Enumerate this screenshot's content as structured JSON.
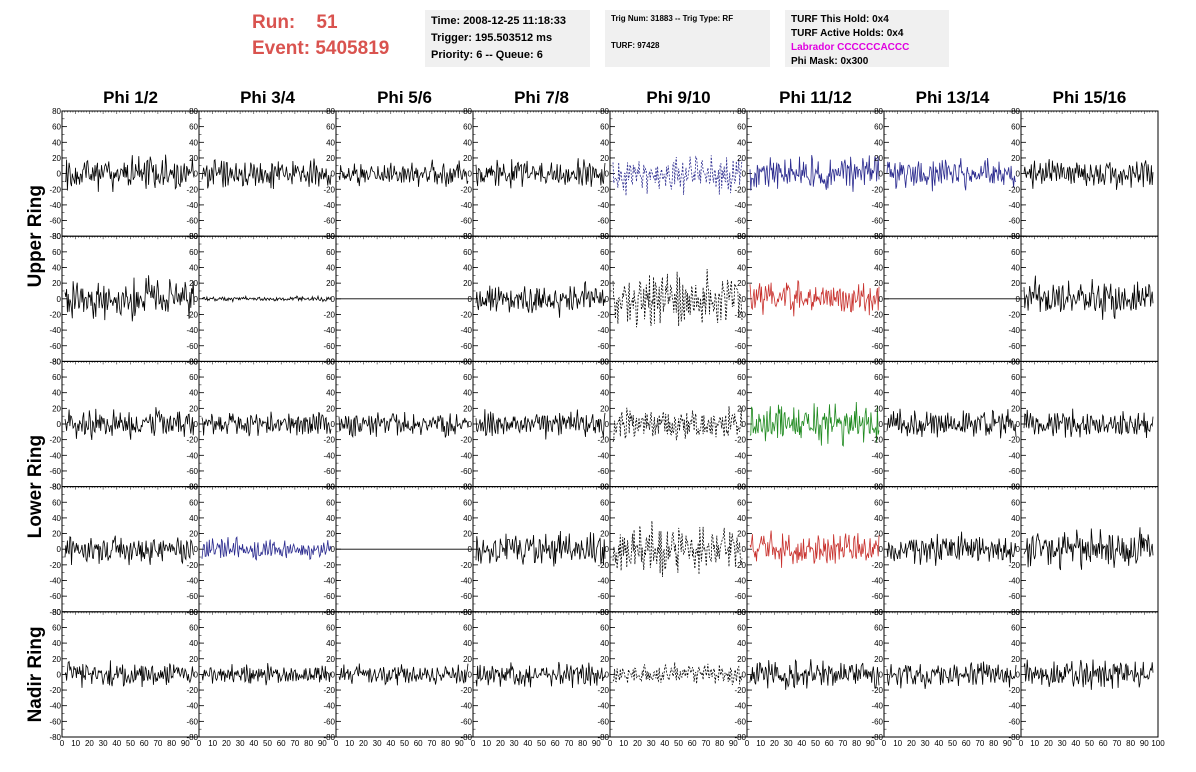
{
  "header": {
    "run_label": "Run:",
    "run_value": "51",
    "event_label": "Event:",
    "event_value": "5405819",
    "box1": {
      "time": "Time: 2008-12-25 11:18:33",
      "trigger": "Trigger: 195.503512 ms",
      "priority": "Priority: 6 -- Queue: 6"
    },
    "box2": {
      "trig": "Trig Num: 31883 -- Trig Type: RF",
      "turf": "TURF: 97428"
    },
    "box3": {
      "this_hold": "TURF This Hold: 0x4",
      "active_holds": "TURF Active Holds: 0x4",
      "labrador": "Labrador CCCCCCACCC",
      "phi_mask": "Phi Mask: 0x300"
    }
  },
  "colors": {
    "run_text": "#d9534f",
    "labrador_text": "#e000e0",
    "black": "#000000",
    "blue": "#2b2b8f",
    "red": "#c8302c",
    "green": "#1f8a1f"
  },
  "chart_data": {
    "type": "line",
    "columns": [
      "Phi 1/2",
      "Phi 3/4",
      "Phi 5/6",
      "Phi 7/8",
      "Phi 9/10",
      "Phi 11/12",
      "Phi 13/14",
      "Phi 15/16"
    ],
    "rows": [
      "Upper Ring",
      "Lower Ring",
      "Nadir Ring"
    ],
    "ylim": [
      -80,
      80
    ],
    "yticks": [
      80,
      60,
      40,
      20,
      0,
      -20,
      -40,
      -60,
      -80
    ],
    "xlim": [
      0,
      100
    ],
    "xtick_labels": [
      "0",
      "10",
      "20",
      "30",
      "40",
      "50",
      "60",
      "70",
      "80",
      "90",
      "100"
    ],
    "panels": [
      [
        {
          "style": "solid",
          "color": "black",
          "amp": 14,
          "seed": 11
        },
        {
          "style": "solid",
          "color": "black",
          "amp": 12,
          "seed": 12
        },
        {
          "style": "solid",
          "color": "black",
          "amp": 10,
          "seed": 13
        },
        {
          "style": "solid",
          "color": "black",
          "amp": 11,
          "seed": 14
        },
        {
          "style": "dashed",
          "color": "blue",
          "amp": 17,
          "seed": 15
        },
        {
          "style": "solid",
          "color": "blue",
          "amp": 14,
          "seed": 16
        },
        {
          "style": "solid",
          "color": "blue",
          "amp": 13,
          "seed": 17
        },
        {
          "style": "solid",
          "color": "black",
          "amp": 12,
          "seed": 18
        }
      ],
      [
        {
          "style": "solid",
          "color": "black",
          "amp": 16,
          "seed": 21
        },
        {
          "style": "solid",
          "color": "black",
          "amp": 2,
          "seed": 22
        },
        {
          "style": "flat",
          "color": "black",
          "amp": 0,
          "seed": 23
        },
        {
          "style": "solid",
          "color": "black",
          "amp": 14,
          "seed": 24
        },
        {
          "style": "dashed",
          "color": "black",
          "amp": 22,
          "seed": 25
        },
        {
          "style": "solid",
          "color": "red",
          "amp": 14,
          "seed": 26
        },
        {
          "style": "flat",
          "color": "black",
          "amp": 0,
          "seed": 27
        },
        {
          "style": "solid",
          "color": "black",
          "amp": 15,
          "seed": 28
        }
      ],
      [
        {
          "style": "solid",
          "color": "black",
          "amp": 12,
          "seed": 31
        },
        {
          "style": "solid",
          "color": "black",
          "amp": 10,
          "seed": 32
        },
        {
          "style": "solid",
          "color": "black",
          "amp": 10,
          "seed": 33
        },
        {
          "style": "solid",
          "color": "black",
          "amp": 11,
          "seed": 34
        },
        {
          "style": "dashed",
          "color": "black",
          "amp": 13,
          "seed": 35
        },
        {
          "style": "solid",
          "color": "green",
          "amp": 17,
          "seed": 36
        },
        {
          "style": "solid",
          "color": "black",
          "amp": 11,
          "seed": 37
        },
        {
          "style": "solid",
          "color": "black",
          "amp": 11,
          "seed": 38
        }
      ],
      [
        {
          "style": "solid",
          "color": "black",
          "amp": 12,
          "seed": 41
        },
        {
          "style": "solid",
          "color": "blue",
          "amp": 10,
          "seed": 42
        },
        {
          "style": "flat",
          "color": "black",
          "amp": 0,
          "seed": 43
        },
        {
          "style": "solid",
          "color": "black",
          "amp": 14,
          "seed": 44
        },
        {
          "style": "dashed",
          "color": "black",
          "amp": 20,
          "seed": 45
        },
        {
          "style": "solid",
          "color": "red",
          "amp": 13,
          "seed": 46
        },
        {
          "style": "solid",
          "color": "black",
          "amp": 12,
          "seed": 47
        },
        {
          "style": "solid",
          "color": "black",
          "amp": 16,
          "seed": 48
        }
      ],
      [
        {
          "style": "solid",
          "color": "black",
          "amp": 10,
          "seed": 51
        },
        {
          "style": "solid",
          "color": "black",
          "amp": 8,
          "seed": 52
        },
        {
          "style": "solid",
          "color": "black",
          "amp": 9,
          "seed": 53
        },
        {
          "style": "solid",
          "color": "black",
          "amp": 10,
          "seed": 54
        },
        {
          "style": "dashed",
          "color": "black",
          "amp": 9,
          "seed": 55
        },
        {
          "style": "solid",
          "color": "black",
          "amp": 12,
          "seed": 56
        },
        {
          "style": "solid",
          "color": "black",
          "amp": 10,
          "seed": 57
        },
        {
          "style": "solid",
          "color": "black",
          "amp": 12,
          "seed": 58
        }
      ]
    ]
  }
}
